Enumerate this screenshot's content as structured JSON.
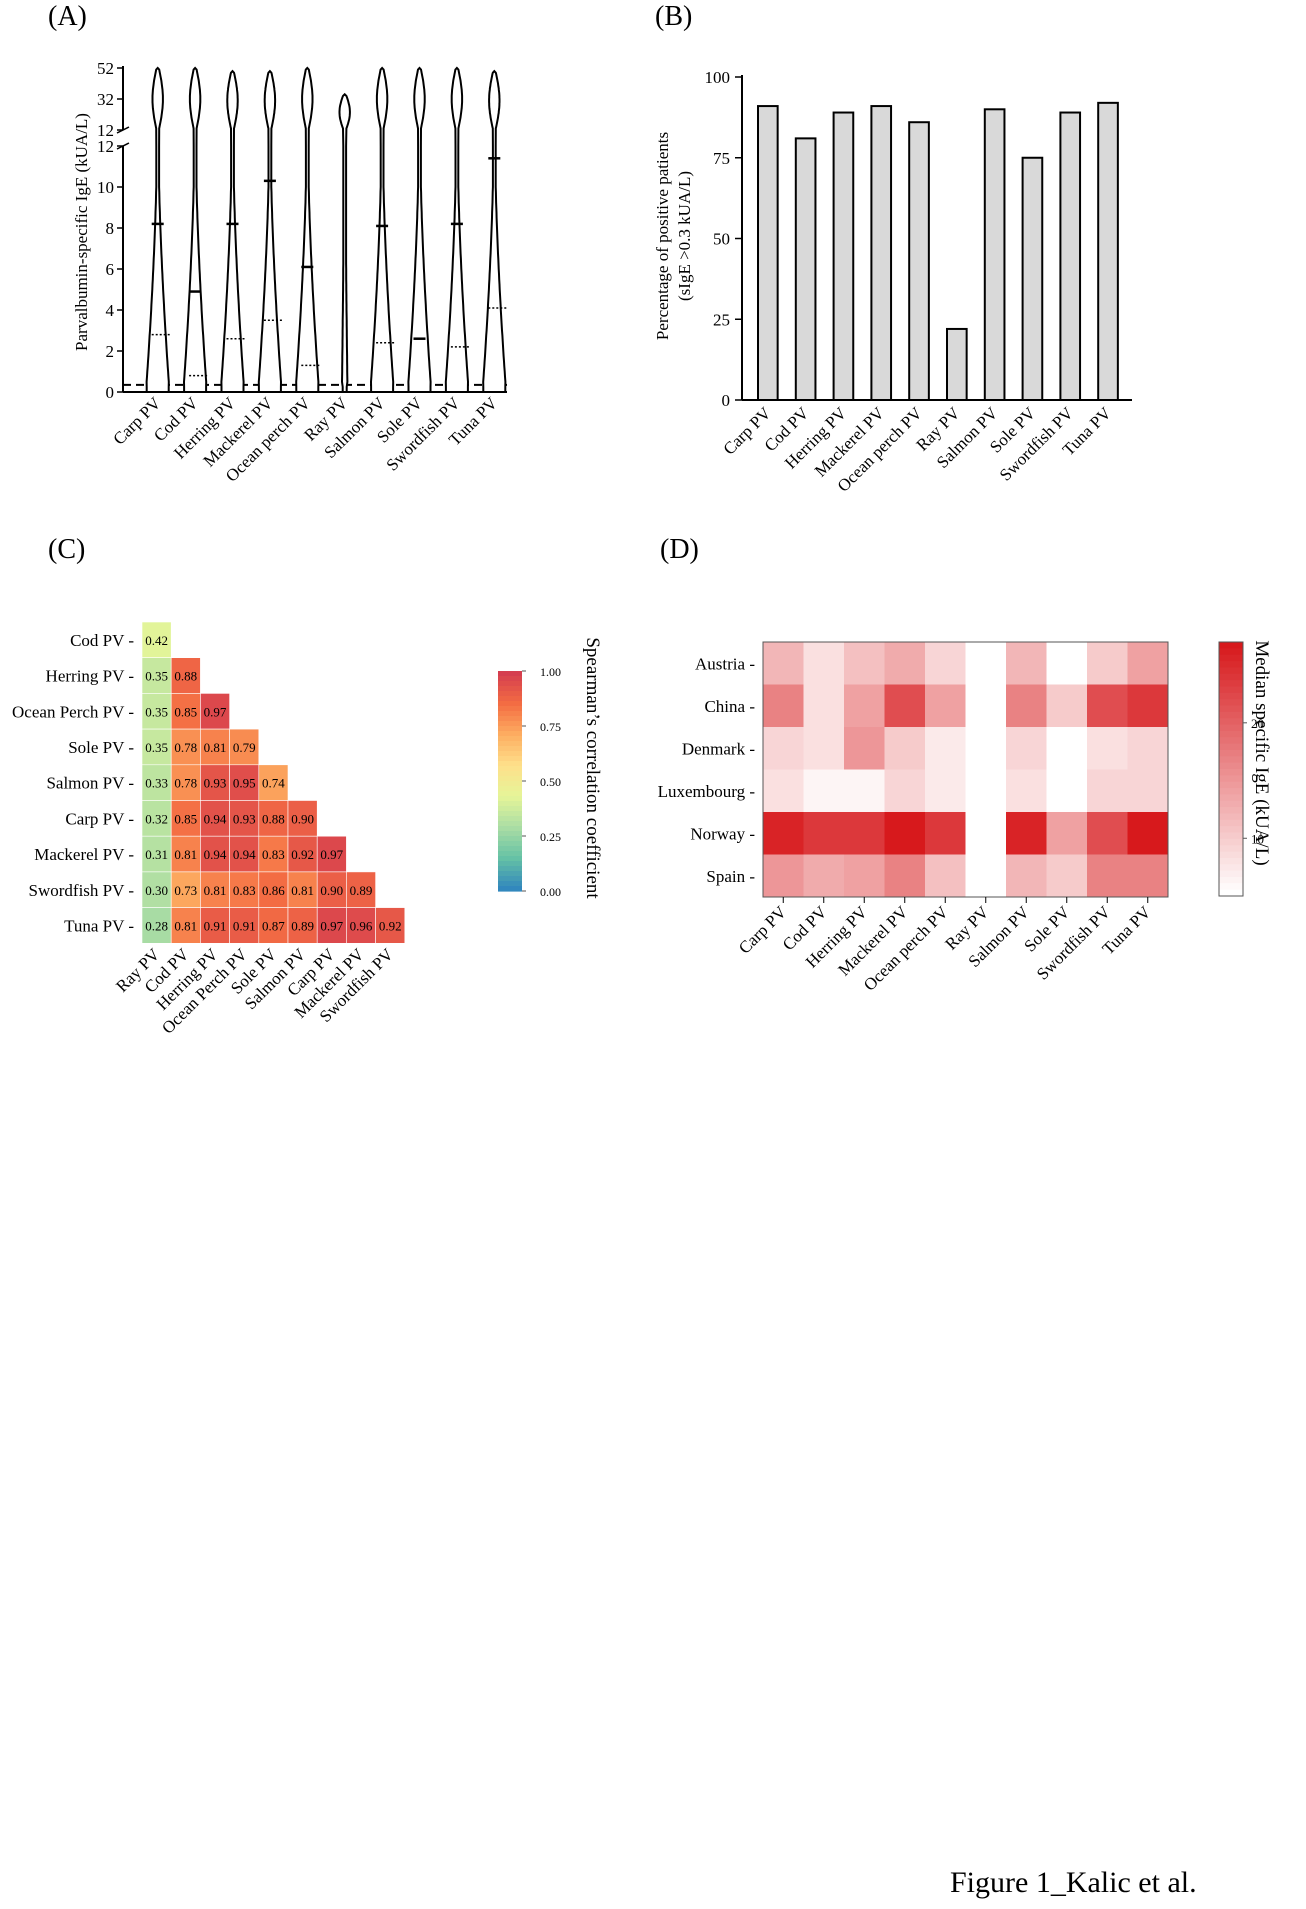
{
  "figure_caption": "Figure 1_Kalic et al.",
  "colors": {
    "bar_fill": "#d9d9d9",
    "heat_low": "#ffffff",
    "heat_high": "#d7191c",
    "spectral": [
      "#3288bd",
      "#66c2a5",
      "#abdda4",
      "#e6f598",
      "#fee08b",
      "#fdae61",
      "#f46d43",
      "#d53e4f"
    ]
  },
  "chart_data": [
    {
      "panel": "(A)",
      "type": "violin",
      "categories": [
        "Carp PV",
        "Cod PV",
        "Herring PV",
        "Mackerel PV",
        "Ocean perch PV",
        "Ray PV",
        "Salmon PV",
        "Sole PV",
        "Swordfish PV",
        "Tuna PV"
      ],
      "ylabel": "Parvalbumin-specific IgE (kUA/L)",
      "y_ticks_lower": [
        "0",
        "2",
        "4",
        "6",
        "8",
        "10",
        "12"
      ],
      "y_ticks_upper": [
        "12",
        "32",
        "52"
      ],
      "ylim_lower": [
        0,
        12
      ],
      "ylim_upper": [
        12,
        52
      ],
      "median": [
        8.2,
        4.9,
        8.2,
        10.3,
        6.1,
        0.1,
        8.1,
        2.6,
        8.2,
        11.4
      ],
      "q1": [
        0.3,
        0.3,
        0.3,
        0.3,
        0.3,
        0.1,
        0.3,
        0.2,
        0.3,
        0.3
      ],
      "q3": [
        2.8,
        0.8,
        2.6,
        3.5,
        1.3,
        0.1,
        2.4,
        0.3,
        2.2,
        4.1
      ],
      "max": [
        52,
        52,
        50,
        50,
        52,
        35,
        52,
        52,
        52,
        50
      ],
      "cutoff": 0.35
    },
    {
      "panel": "(B)",
      "type": "bar",
      "categories": [
        "Carp PV",
        "Cod PV",
        "Herring PV",
        "Mackerel PV",
        "Ocean perch PV",
        "Ray PV",
        "Salmon PV",
        "Sole PV",
        "Swordfish PV",
        "Tuna PV"
      ],
      "values": [
        91,
        81,
        89,
        91,
        86,
        22,
        90,
        75,
        89,
        92
      ],
      "ylabel_line1": "Percentage of positive patients",
      "ylabel_line2": "(sIgE >0.3 kUA/L)",
      "y_ticks": [
        "0",
        "25",
        "50",
        "75",
        "100"
      ],
      "ylim": [
        0,
        100
      ]
    },
    {
      "panel": "(C)",
      "type": "heatmap",
      "rows": [
        "Cod PV",
        "Herring PV",
        "Ocean Perch PV",
        "Sole PV",
        "Salmon PV",
        "Carp PV",
        "Mackerel PV",
        "Swordfish PV",
        "Tuna PV"
      ],
      "cols": [
        "Ray PV",
        "Cod PV",
        "Herring PV",
        "Ocean Perch PV",
        "Sole PV",
        "Salmon PV",
        "Carp PV",
        "Mackerel PV",
        "Swordfish PV"
      ],
      "values": [
        [
          0.42
        ],
        [
          0.35,
          0.88
        ],
        [
          0.35,
          0.85,
          0.97
        ],
        [
          0.35,
          0.78,
          0.81,
          0.79
        ],
        [
          0.33,
          0.78,
          0.93,
          0.95,
          0.74
        ],
        [
          0.32,
          0.85,
          0.94,
          0.93,
          0.88,
          0.9
        ],
        [
          0.31,
          0.81,
          0.94,
          0.94,
          0.83,
          0.92,
          0.97
        ],
        [
          0.3,
          0.73,
          0.81,
          0.83,
          0.86,
          0.81,
          0.9,
          0.89
        ],
        [
          0.28,
          0.81,
          0.91,
          0.91,
          0.87,
          0.89,
          0.97,
          0.96,
          0.92
        ]
      ],
      "value_labels": [
        [
          "0.42"
        ],
        [
          "0.35",
          "0.88"
        ],
        [
          "0.35",
          "0.85",
          "0.97"
        ],
        [
          "0.35",
          "0.78",
          "0.81",
          "0.79"
        ],
        [
          "0.33",
          "0.78",
          "0.93",
          "0.95",
          "0.74"
        ],
        [
          "0.32",
          "0.85",
          "0.94",
          "0.93",
          "0.88",
          "0.90"
        ],
        [
          "0.31",
          "0.81",
          "0.94",
          "0.94",
          "0.83",
          "0.92",
          "0.97"
        ],
        [
          "0.30",
          "0.73",
          "0.81",
          "0.83",
          "0.86",
          "0.81",
          "0.90",
          "0.89"
        ],
        [
          "0.28",
          "0.81",
          "0.91",
          "0.91",
          "0.87",
          "0.89",
          "0.97",
          "0.96",
          "0.92"
        ]
      ],
      "colorbar_label": "Spearman’s correlation coefficient",
      "colorbar_ticks": [
        "0.00",
        "0.25",
        "0.50",
        "0.75",
        "1.00"
      ],
      "range": [
        0,
        1
      ]
    },
    {
      "panel": "(D)",
      "type": "heatmap",
      "rows": [
        "Austria",
        "China",
        "Denmark",
        "Luxembourg",
        "Norway",
        "Spain"
      ],
      "cols": [
        "Carp PV",
        "Cod PV",
        "Herring PV",
        "Mackerel PV",
        "Ocean perch PV",
        "Ray PV",
        "Salmon PV",
        "Sole PV",
        "Swordfish PV",
        "Tuna PV"
      ],
      "values": [
        [
          12,
          8,
          11,
          13,
          9,
          0,
          12,
          5,
          10,
          14
        ],
        [
          17,
          8,
          14,
          22,
          14,
          0,
          17,
          10,
          22,
          24
        ],
        [
          9,
          8,
          15,
          10,
          7,
          0,
          9,
          0,
          8,
          9
        ],
        [
          8,
          6,
          6,
          9,
          7,
          0,
          8,
          0,
          9,
          9
        ],
        [
          26,
          24,
          24,
          27,
          24,
          0,
          26,
          14,
          22,
          27
        ],
        [
          15,
          13,
          14,
          17,
          11,
          0,
          12,
          10,
          17,
          17
        ]
      ],
      "colorbar_label": "Median specific IgE (kUA/L)",
      "colorbar_ticks": [
        "10",
        "20"
      ],
      "range": [
        5,
        27
      ]
    }
  ]
}
